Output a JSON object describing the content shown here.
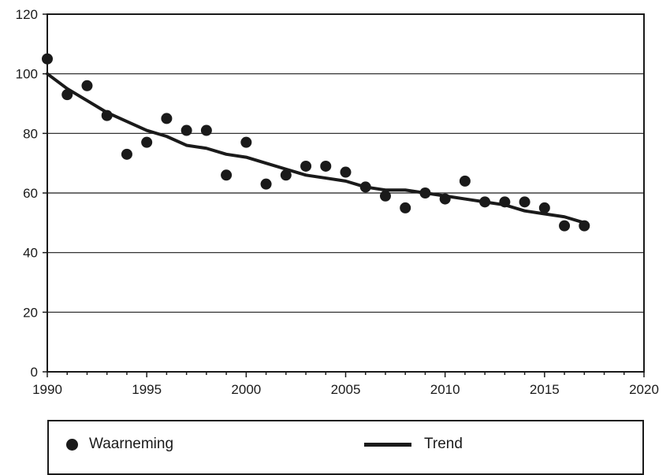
{
  "chart_data": {
    "type": "scatter",
    "xlim": [
      1990,
      2020
    ],
    "ylim": [
      0,
      120
    ],
    "x_ticks": [
      "1990",
      "1995",
      "2000",
      "2005",
      "2010",
      "2015",
      "2020"
    ],
    "y_ticks": [
      "0",
      "20",
      "40",
      "60",
      "80",
      "100",
      "120"
    ],
    "grid": "horizontal",
    "legend_position": "bottom",
    "series": [
      {
        "name": "Waarneming",
        "kind": "points",
        "x": [
          1990,
          1991,
          1992,
          1993,
          1994,
          1995,
          1996,
          1997,
          1998,
          1999,
          2000,
          2001,
          2002,
          2003,
          2004,
          2005,
          2006,
          2007,
          2008,
          2009,
          2010,
          2011,
          2012,
          2013,
          2014,
          2015,
          2016,
          2017
        ],
        "y": [
          105,
          93,
          96,
          86,
          73,
          77,
          85,
          81,
          81,
          66,
          77,
          63,
          66,
          69,
          69,
          67,
          62,
          59,
          55,
          60,
          58,
          64,
          57,
          57,
          57,
          55,
          49,
          49
        ]
      },
      {
        "name": "Trend",
        "kind": "line",
        "x": [
          1990,
          1991,
          1992,
          1993,
          1994,
          1995,
          1996,
          1997,
          1998,
          1999,
          2000,
          2001,
          2002,
          2003,
          2004,
          2005,
          2006,
          2007,
          2008,
          2009,
          2010,
          2011,
          2012,
          2013,
          2014,
          2015,
          2016,
          2017
        ],
        "y": [
          100,
          95,
          91,
          87,
          84,
          81,
          79,
          76,
          75,
          73,
          72,
          70,
          68,
          66,
          65,
          64,
          62,
          61,
          61,
          60,
          59,
          58,
          57,
          56,
          54,
          53,
          52,
          50
        ]
      }
    ],
    "colors": {
      "points": "#1a1a1a",
      "line": "#1a1a1a",
      "grid": "#1a1a1a"
    }
  },
  "legend": {
    "observation_label": "Waarneming",
    "trend_label": "Trend"
  }
}
